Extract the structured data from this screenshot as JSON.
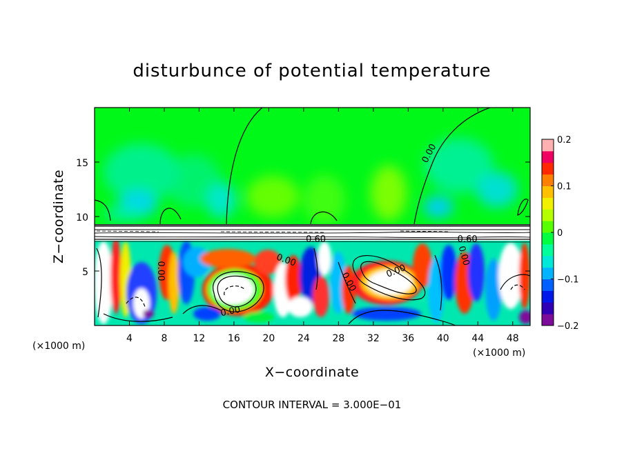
{
  "chart_data": {
    "type": "heatmap",
    "title": "disturbunce of potential temperature",
    "xlabel": "X−coordinate",
    "ylabel": "Z−coordinate",
    "x_unit": "(×1000 m)",
    "y_unit": "(×1000 m)",
    "xlim": [
      0,
      50
    ],
    "ylim": [
      0,
      20
    ],
    "x_ticks": [
      4,
      8,
      12,
      16,
      20,
      24,
      28,
      32,
      36,
      40,
      44,
      48
    ],
    "y_ticks": [
      5,
      10,
      15
    ],
    "colorbar": {
      "min": -0.2,
      "max": 0.2,
      "ticks": [
        {
          "value": 0.2,
          "label": "0.2"
        },
        {
          "value": 0.1,
          "label": "0.1"
        },
        {
          "value": 0,
          "label": "0"
        },
        {
          "value": -0.1,
          "label": "−0.1"
        },
        {
          "value": -0.2,
          "label": "−0.2"
        }
      ],
      "colors": [
        "#7d0c9a",
        "#3000b4",
        "#0018e8",
        "#0060ff",
        "#00b4ff",
        "#00e8d8",
        "#00ff9a",
        "#00ff40",
        "#58ff00",
        "#b4ff00",
        "#f0f000",
        "#ffc000",
        "#ff8000",
        "#ff2800",
        "#f00060",
        "#ffb0b0"
      ]
    },
    "contour_labels": [
      {
        "text": "0.00",
        "x": 38.4,
        "z": 15.8,
        "angle": -62
      },
      {
        "text": "0.00",
        "x": 7.6,
        "z": 5.0,
        "angle": 90
      },
      {
        "text": "0.00",
        "x": 22.0,
        "z": 6.0,
        "angle": 20
      },
      {
        "text": "0.00",
        "x": 15.6,
        "z": 1.3,
        "angle": -12
      },
      {
        "text": "0.00",
        "x": 29.2,
        "z": 4.0,
        "angle": 62
      },
      {
        "text": "0.00",
        "x": 34.6,
        "z": 5.0,
        "angle": -22
      },
      {
        "text": "0.00",
        "x": 42.4,
        "z": 6.4,
        "angle": 75
      },
      {
        "text": "0.60",
        "x": 25.4,
        "z": 7.9,
        "angle": 0
      },
      {
        "text": "0.60",
        "x": 42.8,
        "z": 7.9,
        "angle": 0
      }
    ],
    "note": "CONTOUR INTERVAL = 3.000E−01"
  }
}
